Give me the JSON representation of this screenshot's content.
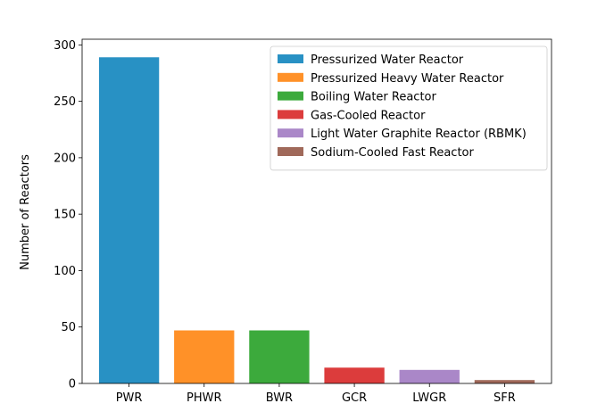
{
  "chart_data": {
    "type": "bar",
    "title": "",
    "xlabel": "",
    "ylabel": "Number of Reactors",
    "ylim": [
      0,
      305
    ],
    "yticks": [
      0,
      50,
      100,
      150,
      200,
      250,
      300
    ],
    "grid": false,
    "legend_position": "top-right",
    "categories": [
      "PWR",
      "PHWR",
      "BWR",
      "GCR",
      "LWGR",
      "SFR"
    ],
    "values": [
      289,
      47,
      47,
      14,
      12,
      3
    ],
    "colors": [
      "#2891c4",
      "#ff9128",
      "#3caa3c",
      "#dc3c3c",
      "#aa87c8",
      "#a0695a"
    ],
    "legend": [
      "Pressurized Water Reactor",
      "Pressurized Heavy Water Reactor",
      "Boiling Water Reactor",
      "Gas-Cooled Reactor",
      "Light Water Graphite Reactor (RBMK)",
      "Sodium-Cooled Fast Reactor"
    ]
  }
}
